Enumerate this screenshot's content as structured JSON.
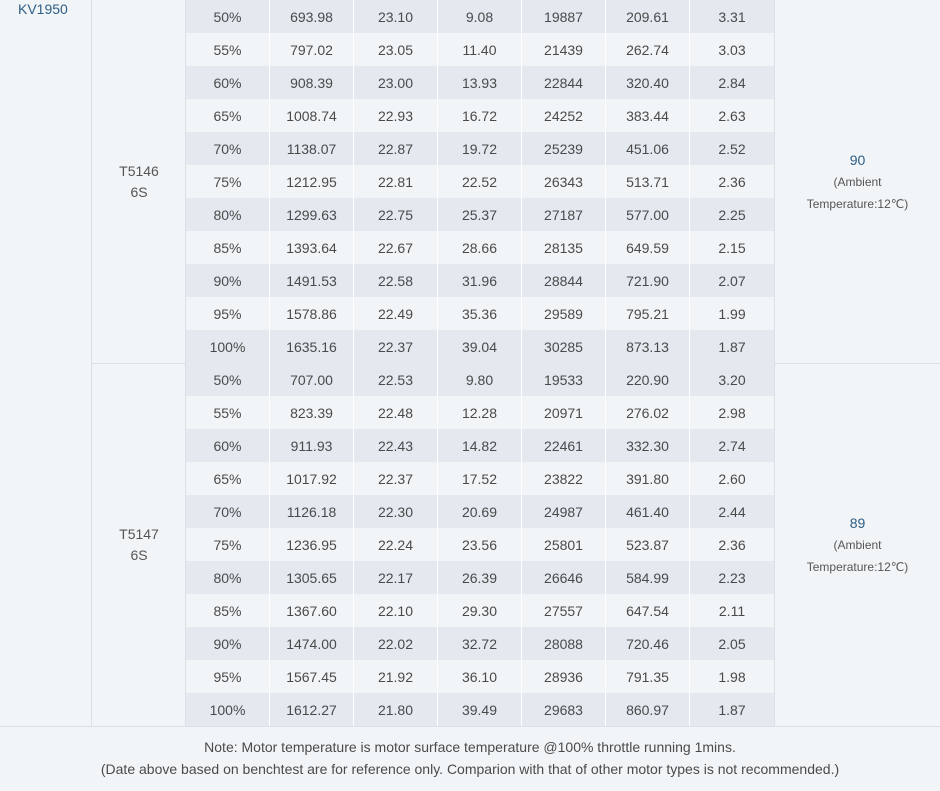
{
  "motor_kv": "KV1950",
  "blocks": [
    {
      "propeller_line1": "T5146",
      "propeller_line2": "6S",
      "rows": [
        [
          "50%",
          "693.98",
          "23.10",
          "9.08",
          "19887",
          "209.61",
          "3.31"
        ],
        [
          "55%",
          "797.02",
          "23.05",
          "11.40",
          "21439",
          "262.74",
          "3.03"
        ],
        [
          "60%",
          "908.39",
          "23.00",
          "13.93",
          "22844",
          "320.40",
          "2.84"
        ],
        [
          "65%",
          "1008.74",
          "22.93",
          "16.72",
          "24252",
          "383.44",
          "2.63"
        ],
        [
          "70%",
          "1138.07",
          "22.87",
          "19.72",
          "25239",
          "451.06",
          "2.52"
        ],
        [
          "75%",
          "1212.95",
          "22.81",
          "22.52",
          "26343",
          "513.71",
          "2.36"
        ],
        [
          "80%",
          "1299.63",
          "22.75",
          "25.37",
          "27187",
          "577.00",
          "2.25"
        ],
        [
          "85%",
          "1393.64",
          "22.67",
          "28.66",
          "28135",
          "649.59",
          "2.15"
        ],
        [
          "90%",
          "1491.53",
          "22.58",
          "31.96",
          "28844",
          "721.90",
          "2.07"
        ],
        [
          "95%",
          "1578.86",
          "22.49",
          "35.36",
          "29589",
          "795.21",
          "1.99"
        ],
        [
          "100%",
          "1635.16",
          "22.37",
          "39.04",
          "30285",
          "873.13",
          "1.87"
        ]
      ],
      "temperature": "90",
      "ambient_line1": "(Ambient",
      "ambient_line2": "Temperature:12℃)"
    },
    {
      "propeller_line1": "T5147",
      "propeller_line2": "6S",
      "rows": [
        [
          "50%",
          "707.00",
          "22.53",
          "9.80",
          "19533",
          "220.90",
          "3.20"
        ],
        [
          "55%",
          "823.39",
          "22.48",
          "12.28",
          "20971",
          "276.02",
          "2.98"
        ],
        [
          "60%",
          "911.93",
          "22.43",
          "14.82",
          "22461",
          "332.30",
          "2.74"
        ],
        [
          "65%",
          "1017.92",
          "22.37",
          "17.52",
          "23822",
          "391.80",
          "2.60"
        ],
        [
          "70%",
          "1126.18",
          "22.30",
          "20.69",
          "24987",
          "461.40",
          "2.44"
        ],
        [
          "75%",
          "1236.95",
          "22.24",
          "23.56",
          "25801",
          "523.87",
          "2.36"
        ],
        [
          "80%",
          "1305.65",
          "22.17",
          "26.39",
          "26646",
          "584.99",
          "2.23"
        ],
        [
          "85%",
          "1367.60",
          "22.10",
          "29.30",
          "27557",
          "647.54",
          "2.11"
        ],
        [
          "90%",
          "1474.00",
          "22.02",
          "32.72",
          "28088",
          "720.46",
          "2.05"
        ],
        [
          "95%",
          "1567.45",
          "21.92",
          "36.10",
          "28936",
          "791.35",
          "1.98"
        ],
        [
          "100%",
          "1612.27",
          "21.80",
          "39.49",
          "29683",
          "860.97",
          "1.87"
        ]
      ],
      "temperature": "89",
      "ambient_line1": "(Ambient",
      "ambient_line2": "Temperature:12℃)"
    }
  ],
  "footer": {
    "line1": "Note: Motor temperature is motor surface temperature @100% throttle running 1mins.",
    "line2": "(Date above based on benchtest are for reference only. Comparion with that of other motor types is not recommended.)"
  }
}
